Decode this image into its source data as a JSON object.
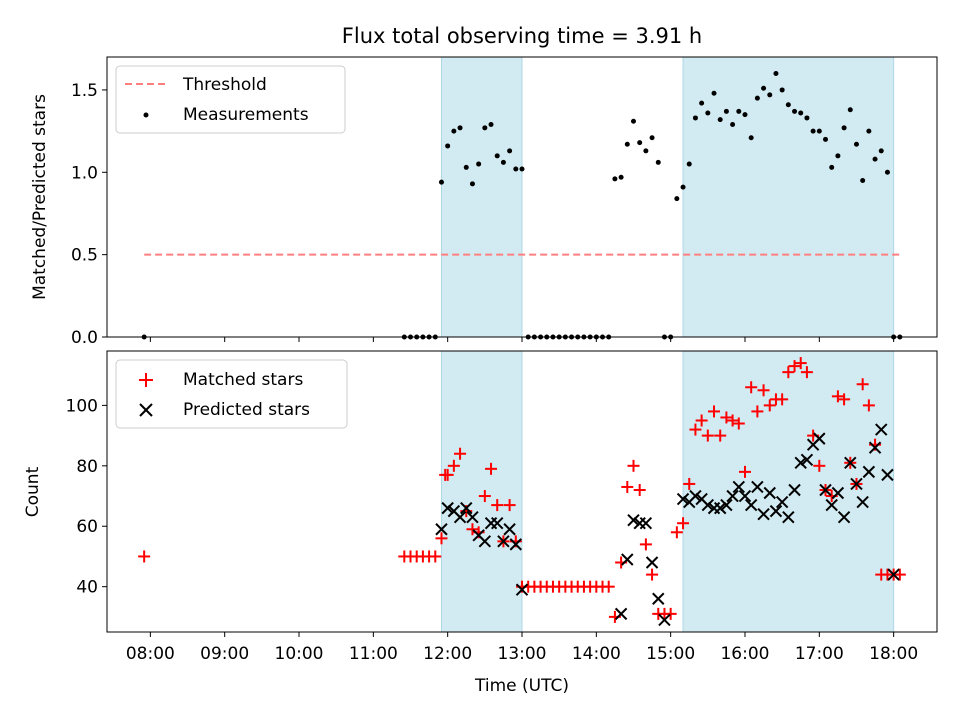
{
  "chart_data": [
    {
      "type": "scatter",
      "title": "Flux total observing time = 3.91 h",
      "ylabel": "Matched/Predicted stars",
      "xlabel": "",
      "ylim": [
        0,
        1.7
      ],
      "yticks": [
        "0.0",
        "0.5",
        "1.0",
        "1.5"
      ],
      "grid": false,
      "legend_position": "upper-left",
      "shaded_intervals": [
        [
          "11:55",
          "13:00"
        ],
        [
          "15:10",
          "18:00"
        ]
      ],
      "shade_color": "#add8e6",
      "threshold": {
        "name": "Threshold",
        "value": 0.5,
        "x_range": [
          "07:55",
          "18:05"
        ],
        "color": "#ff7f7f"
      },
      "series": [
        {
          "name": "Measurements",
          "color": "#000000",
          "x": [
            "07:55",
            "11:25",
            "11:30",
            "11:35",
            "11:40",
            "11:45",
            "11:50",
            "11:55",
            "12:00",
            "12:05",
            "12:10",
            "12:15",
            "12:20",
            "12:25",
            "12:30",
            "12:35",
            "12:40",
            "12:45",
            "12:50",
            "12:55",
            "13:00",
            "13:05",
            "13:10",
            "13:15",
            "13:20",
            "13:25",
            "13:30",
            "13:35",
            "13:40",
            "13:45",
            "13:50",
            "13:55",
            "14:00",
            "14:05",
            "14:10",
            "14:15",
            "14:20",
            "14:25",
            "14:30",
            "14:35",
            "14:40",
            "14:45",
            "14:50",
            "14:55",
            "15:00",
            "15:05",
            "15:10",
            "15:15",
            "15:20",
            "15:25",
            "15:30",
            "15:35",
            "15:40",
            "15:45",
            "15:50",
            "15:55",
            "16:00",
            "16:05",
            "16:10",
            "16:15",
            "16:20",
            "16:25",
            "16:30",
            "16:35",
            "16:40",
            "16:45",
            "16:50",
            "16:55",
            "17:00",
            "17:05",
            "17:10",
            "17:15",
            "17:20",
            "17:25",
            "17:30",
            "17:35",
            "17:40",
            "17:45",
            "17:50",
            "17:55",
            "18:00",
            "18:05"
          ],
          "y": [
            0.0,
            0.0,
            0.0,
            0.0,
            0.0,
            0.0,
            0.0,
            0.94,
            1.16,
            1.25,
            1.27,
            1.03,
            0.93,
            1.05,
            1.27,
            1.29,
            1.1,
            1.06,
            1.13,
            1.02,
            1.02,
            0.0,
            0.0,
            0.0,
            0.0,
            0.0,
            0.0,
            0.0,
            0.0,
            0.0,
            0.0,
            0.0,
            0.0,
            0.0,
            0.0,
            0.96,
            0.97,
            1.17,
            1.31,
            1.18,
            1.13,
            1.21,
            1.06,
            0.0,
            0.0,
            0.84,
            0.91,
            1.05,
            1.33,
            1.42,
            1.36,
            1.48,
            1.32,
            1.37,
            1.29,
            1.37,
            1.35,
            1.21,
            1.45,
            1.51,
            1.47,
            1.6,
            1.5,
            1.41,
            1.37,
            1.36,
            1.33,
            1.25,
            1.25,
            1.2,
            1.03,
            1.1,
            1.27,
            1.38,
            1.17,
            0.95,
            1.25,
            1.08,
            1.13,
            1.0,
            0.0,
            0.0
          ]
        }
      ]
    },
    {
      "type": "scatter",
      "title": "",
      "ylabel": "Count",
      "xlabel": "Time (UTC)",
      "ylim": [
        25,
        118
      ],
      "yticks": [
        "40",
        "60",
        "80",
        "100"
      ],
      "xticks": [
        "08:00",
        "09:00",
        "10:00",
        "11:00",
        "12:00",
        "13:00",
        "14:00",
        "15:00",
        "16:00",
        "17:00",
        "18:00"
      ],
      "xlim": [
        "07:25",
        "18:35"
      ],
      "grid": false,
      "legend_position": "upper-left",
      "shaded_intervals": [
        [
          "11:55",
          "13:00"
        ],
        [
          "15:10",
          "18:00"
        ]
      ],
      "shade_color": "#add8e6",
      "series": [
        {
          "name": "Matched stars",
          "marker": "plus",
          "color": "#ff0000",
          "x": [
            "07:55",
            "11:25",
            "11:30",
            "11:35",
            "11:40",
            "11:45",
            "11:50",
            "11:55",
            "11:58",
            "12:00",
            "12:05",
            "12:10",
            "12:15",
            "12:20",
            "12:25",
            "12:30",
            "12:35",
            "12:40",
            "12:45",
            "12:50",
            "12:55",
            "13:00",
            "13:05",
            "13:10",
            "13:15",
            "13:20",
            "13:25",
            "13:30",
            "13:35",
            "13:40",
            "13:45",
            "13:50",
            "13:55",
            "14:00",
            "14:05",
            "14:10",
            "14:15",
            "14:20",
            "14:25",
            "14:30",
            "14:35",
            "14:40",
            "14:45",
            "14:50",
            "14:55",
            "15:00",
            "15:05",
            "15:10",
            "15:15",
            "15:20",
            "15:25",
            "15:30",
            "15:35",
            "15:40",
            "15:45",
            "15:50",
            "15:55",
            "16:00",
            "16:05",
            "16:10",
            "16:15",
            "16:20",
            "16:25",
            "16:30",
            "16:35",
            "16:40",
            "16:45",
            "16:50",
            "16:55",
            "17:00",
            "17:05",
            "17:10",
            "17:15",
            "17:20",
            "17:25",
            "17:30",
            "17:35",
            "17:40",
            "17:45",
            "17:50",
            "17:55",
            "18:00",
            "18:05"
          ],
          "y": [
            50,
            50,
            50,
            50,
            50,
            50,
            50,
            56,
            77,
            77,
            80,
            84,
            65,
            59,
            58,
            70,
            79,
            67,
            55,
            67,
            55,
            40,
            40,
            40,
            40,
            40,
            40,
            40,
            40,
            40,
            40,
            40,
            40,
            40,
            40,
            40,
            30,
            48,
            73,
            80,
            72,
            54,
            44,
            31,
            31,
            31,
            58,
            61,
            74,
            92,
            95,
            90,
            98,
            90,
            96,
            95,
            94,
            78,
            106,
            98,
            105,
            100,
            102,
            102,
            111,
            113,
            114,
            111,
            90,
            80,
            72,
            70,
            103,
            102,
            81,
            74,
            107,
            100,
            87,
            44,
            44,
            44,
            44
          ]
        },
        {
          "name": "Predicted stars",
          "marker": "x",
          "color": "#000000",
          "x": [
            "11:55",
            "12:00",
            "12:05",
            "12:10",
            "12:15",
            "12:20",
            "12:25",
            "12:30",
            "12:35",
            "12:40",
            "12:45",
            "12:50",
            "12:55",
            "13:00",
            "14:20",
            "14:25",
            "14:30",
            "14:35",
            "14:40",
            "14:45",
            "14:50",
            "14:55",
            "15:10",
            "15:15",
            "15:20",
            "15:25",
            "15:30",
            "15:35",
            "15:40",
            "15:45",
            "15:50",
            "15:55",
            "16:00",
            "16:05",
            "16:10",
            "16:15",
            "16:20",
            "16:25",
            "16:30",
            "16:35",
            "16:40",
            "16:45",
            "16:50",
            "16:55",
            "17:00",
            "17:05",
            "17:10",
            "17:15",
            "17:20",
            "17:25",
            "17:30",
            "17:35",
            "17:40",
            "17:45",
            "17:50",
            "17:55",
            "18:00"
          ],
          "y": [
            59,
            66,
            65,
            63,
            66,
            63,
            57,
            55,
            61,
            61,
            55,
            59,
            54,
            39,
            31,
            49,
            62,
            61,
            61,
            48,
            36,
            29,
            69,
            68,
            70,
            69,
            67,
            66,
            66,
            67,
            70,
            73,
            70,
            67,
            73,
            64,
            71,
            65,
            68,
            63,
            72,
            81,
            82,
            87,
            89,
            72,
            67,
            71,
            63,
            81,
            74,
            68,
            78,
            86,
            92,
            77,
            44
          ]
        }
      ]
    }
  ],
  "legend": {
    "top": {
      "threshold_label": "Threshold",
      "measurements_label": "Measurements"
    },
    "bottom": {
      "matched_label": "Matched stars",
      "predicted_label": "Predicted stars"
    }
  }
}
